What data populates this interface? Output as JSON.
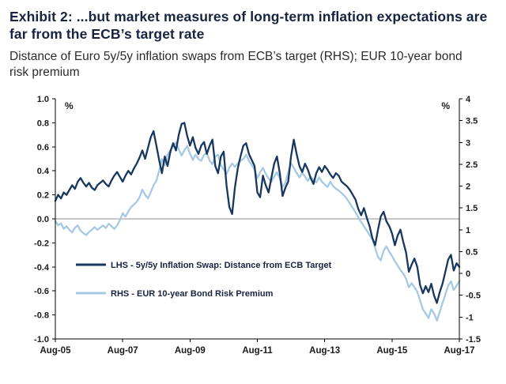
{
  "chart_data": {
    "type": "line",
    "title": "Exhibit 2: ...but market measures of long-term inflation expectations are far from the ECB’s target rate",
    "subtitle": "Distance of Euro 5y/5y inflation swaps from ECB’s target (RHS); EUR 10-year bond risk premium",
    "x_axis": {
      "range": [
        0,
        144
      ],
      "tick_positions": [
        0,
        24,
        48,
        72,
        96,
        120,
        144
      ],
      "tick_labels": [
        "Aug-05",
        "Aug-07",
        "Aug-09",
        "Aug-11",
        "Aug-13",
        "Aug-15",
        "Aug-17"
      ]
    },
    "left_axis": {
      "unit_label": "%",
      "range": [
        -1.0,
        1.0
      ],
      "ticks": [
        1.0,
        0.8,
        0.6,
        0.4,
        0.2,
        0.0,
        -0.2,
        -0.4,
        -0.6,
        -0.8,
        -1.0
      ],
      "tick_labels": [
        "1.0",
        "0.8",
        "0.6",
        "0.4",
        "0.2",
        "0.0",
        "-0.2",
        "-0.4",
        "-0.6",
        "-0.8",
        "-1.0"
      ]
    },
    "right_axis": {
      "unit_label": "%",
      "range": [
        -1.5,
        4
      ],
      "ticks": [
        4,
        3.5,
        3,
        2.5,
        2,
        1.5,
        1,
        0.5,
        0,
        -0.5,
        -1,
        -1.5
      ],
      "tick_labels": [
        "4",
        "3.5",
        "3",
        "2.5",
        "2",
        "1.5",
        "1",
        "0.5",
        "0",
        "-0.5",
        "-1",
        "-1.5"
      ]
    },
    "zero_reference_line": {
      "axis": "left",
      "value": 0.0,
      "color": "#8c8c8c"
    },
    "legend_position": "inside bottom-left",
    "series": [
      {
        "name": "LHS - 5y/5y Inflation Swap: Distance from ECB Target",
        "axis": "left",
        "color": "#17375e",
        "values": [
          0.15,
          0.2,
          0.17,
          0.22,
          0.2,
          0.24,
          0.28,
          0.25,
          0.31,
          0.34,
          0.3,
          0.27,
          0.3,
          0.26,
          0.24,
          0.28,
          0.3,
          0.32,
          0.29,
          0.27,
          0.32,
          0.36,
          0.39,
          0.35,
          0.31,
          0.36,
          0.4,
          0.37,
          0.42,
          0.46,
          0.51,
          0.57,
          0.5,
          0.59,
          0.68,
          0.73,
          0.61,
          0.49,
          0.38,
          0.52,
          0.44,
          0.56,
          0.63,
          0.57,
          0.7,
          0.79,
          0.8,
          0.69,
          0.61,
          0.68,
          0.59,
          0.54,
          0.61,
          0.64,
          0.54,
          0.61,
          0.66,
          0.44,
          0.38,
          0.52,
          0.56,
          0.28,
          0.1,
          0.04,
          0.26,
          0.42,
          0.52,
          0.61,
          0.63,
          0.54,
          0.49,
          0.44,
          0.22,
          0.18,
          0.36,
          0.28,
          0.22,
          0.34,
          0.46,
          0.52,
          0.38,
          0.19,
          0.26,
          0.31,
          0.52,
          0.66,
          0.54,
          0.44,
          0.39,
          0.46,
          0.41,
          0.34,
          0.29,
          0.38,
          0.43,
          0.39,
          0.44,
          0.41,
          0.37,
          0.34,
          0.38,
          0.36,
          0.31,
          0.29,
          0.27,
          0.24,
          0.2,
          0.16,
          0.08,
          0.03,
          0.09,
          0.01,
          -0.06,
          -0.16,
          -0.22,
          -0.09,
          0.02,
          0.06,
          -0.02,
          -0.06,
          -0.12,
          -0.22,
          -0.14,
          -0.09,
          -0.19,
          -0.28,
          -0.44,
          -0.38,
          -0.33,
          -0.4,
          -0.55,
          -0.62,
          -0.56,
          -0.61,
          -0.54,
          -0.64,
          -0.7,
          -0.61,
          -0.54,
          -0.44,
          -0.34,
          -0.3,
          -0.43,
          -0.37,
          -0.4
        ]
      },
      {
        "name": "RHS - EUR 10-year Bond Risk Premium",
        "axis": "right",
        "color": "#a6c9e3",
        "values": [
          1.2,
          1.1,
          1.15,
          1.02,
          1.08,
          1.0,
          0.94,
          1.05,
          1.1,
          0.98,
          0.92,
          0.88,
          0.95,
          1.0,
          1.06,
          1.0,
          1.05,
          1.1,
          1.04,
          1.14,
          1.08,
          1.02,
          1.1,
          1.22,
          1.38,
          1.3,
          1.42,
          1.52,
          1.58,
          1.64,
          1.74,
          1.92,
          1.8,
          1.72,
          1.86,
          2.02,
          2.12,
          2.35,
          2.62,
          2.48,
          2.72,
          2.82,
          2.92,
          3.0,
          2.84,
          2.7,
          2.82,
          2.92,
          2.74,
          2.6,
          2.72,
          2.62,
          2.58,
          2.72,
          2.76,
          2.58,
          2.5,
          2.68,
          2.72,
          2.48,
          2.38,
          2.28,
          2.42,
          2.52,
          2.44,
          2.52,
          2.58,
          2.62,
          2.72,
          2.58,
          2.48,
          2.38,
          2.18,
          2.32,
          2.42,
          2.28,
          2.18,
          2.1,
          2.22,
          2.32,
          2.18,
          1.98,
          2.08,
          2.32,
          2.52,
          2.42,
          2.3,
          2.2,
          2.3,
          2.22,
          2.12,
          2.22,
          2.14,
          2.08,
          2.2,
          2.1,
          2.04,
          1.98,
          2.1,
          2.0,
          1.94,
          1.9,
          1.84,
          1.78,
          1.7,
          1.6,
          1.5,
          1.4,
          1.28,
          1.18,
          1.08,
          0.98,
          0.88,
          0.78,
          0.58,
          0.38,
          0.3,
          0.52,
          0.62,
          0.5,
          0.4,
          0.28,
          0.18,
          0.08,
          0.0,
          -0.12,
          -0.32,
          -0.22,
          -0.32,
          -0.42,
          -0.62,
          -0.82,
          -0.92,
          -1.02,
          -0.82,
          -0.92,
          -1.08,
          -0.88,
          -0.68,
          -0.48,
          -0.28,
          -0.18,
          -0.38,
          -0.28,
          -0.18
        ]
      }
    ]
  }
}
